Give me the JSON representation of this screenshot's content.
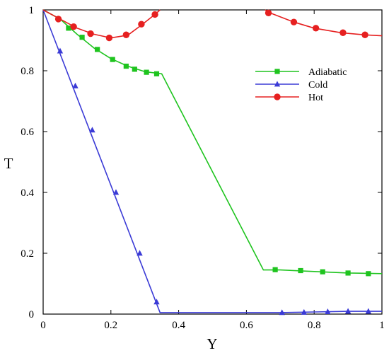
{
  "chart_data": {
    "type": "line",
    "xlabel": "Y",
    "ylabel": "T",
    "xlim": [
      0,
      1
    ],
    "ylim": [
      0,
      1
    ],
    "x_ticks": [
      "0",
      "0.2",
      "0.4",
      "0.6",
      "0.8",
      "1"
    ],
    "y_ticks": [
      "0",
      "0.2",
      "0.4",
      "0.6",
      "0.8",
      "1"
    ],
    "legend_position": "top-right",
    "series": [
      {
        "name": "Adiabatic",
        "color": "#1fc41f",
        "marker": "square",
        "line": [
          [
            0,
            1
          ],
          [
            0.05,
            0.97
          ],
          [
            0.1,
            0.92
          ],
          [
            0.15,
            0.875
          ],
          [
            0.2,
            0.84
          ],
          [
            0.25,
            0.815
          ],
          [
            0.3,
            0.797
          ],
          [
            0.35,
            0.79
          ],
          [
            0.65,
            0.145
          ],
          [
            0.7,
            0.145
          ],
          [
            0.8,
            0.14
          ],
          [
            0.9,
            0.135
          ],
          [
            1.0,
            0.133
          ]
        ],
        "markers": [
          [
            0.075,
            0.94
          ],
          [
            0.115,
            0.91
          ],
          [
            0.16,
            0.87
          ],
          [
            0.205,
            0.837
          ],
          [
            0.245,
            0.815
          ],
          [
            0.27,
            0.805
          ],
          [
            0.305,
            0.795
          ],
          [
            0.335,
            0.79
          ],
          [
            0.685,
            0.146
          ],
          [
            0.76,
            0.143
          ],
          [
            0.825,
            0.139
          ],
          [
            0.9,
            0.135
          ],
          [
            0.96,
            0.133
          ]
        ]
      },
      {
        "name": "Cold",
        "color": "#3b3bd6",
        "marker": "triangle",
        "line": [
          [
            0,
            1
          ],
          [
            0.345,
            0.005
          ],
          [
            0.7,
            0.005
          ],
          [
            0.8,
            0.007
          ],
          [
            0.9,
            0.009
          ],
          [
            1.0,
            0.009
          ]
        ],
        "markers": [
          [
            0.05,
            0.865
          ],
          [
            0.095,
            0.75
          ],
          [
            0.145,
            0.605
          ],
          [
            0.215,
            0.4
          ],
          [
            0.285,
            0.2
          ],
          [
            0.335,
            0.04
          ],
          [
            0.705,
            0.005
          ],
          [
            0.77,
            0.006
          ],
          [
            0.84,
            0.008
          ],
          [
            0.9,
            0.009
          ],
          [
            0.96,
            0.009
          ]
        ]
      },
      {
        "name": "Hot",
        "color": "#e62020",
        "marker": "circle",
        "line_segments": [
          [
            [
              0,
              1
            ],
            [
              0.05,
              0.97
            ],
            [
              0.1,
              0.94
            ],
            [
              0.15,
              0.92
            ],
            [
              0.2,
              0.908
            ],
            [
              0.25,
              0.917
            ],
            [
              0.29,
              0.95
            ],
            [
              0.33,
              0.985
            ],
            [
              0.345,
              1.0
            ]
          ],
          [
            [
              0.655,
              1.0
            ],
            [
              0.67,
              0.99
            ],
            [
              0.74,
              0.96
            ],
            [
              0.8,
              0.94
            ],
            [
              0.88,
              0.925
            ],
            [
              0.95,
              0.918
            ],
            [
              1.0,
              0.915
            ]
          ]
        ],
        "markers": [
          [
            0.045,
            0.97
          ],
          [
            0.09,
            0.945
          ],
          [
            0.14,
            0.922
          ],
          [
            0.195,
            0.908
          ],
          [
            0.245,
            0.918
          ],
          [
            0.29,
            0.953
          ],
          [
            0.33,
            0.985
          ],
          [
            0.665,
            0.99
          ],
          [
            0.74,
            0.96
          ],
          [
            0.805,
            0.94
          ],
          [
            0.885,
            0.925
          ],
          [
            0.95,
            0.918
          ]
        ]
      }
    ]
  }
}
